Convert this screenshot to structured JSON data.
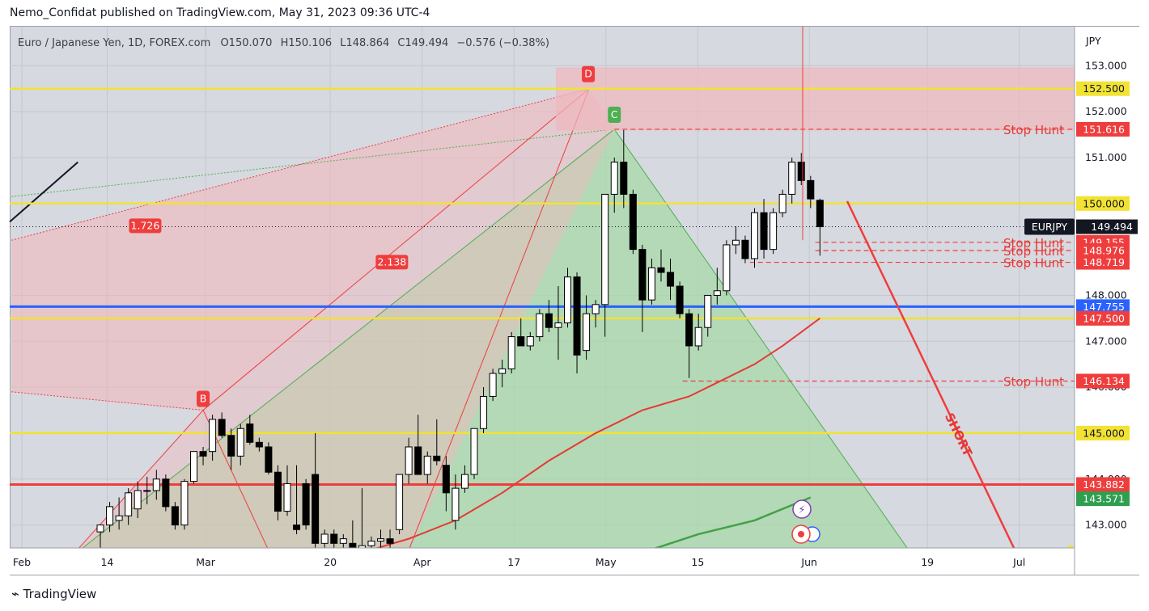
{
  "header": {
    "published": "Nemo_Confidat published on TradingView.com, May 31, 2023 09:36 UTC-4"
  },
  "footer": {
    "logo": "TradingView"
  },
  "chart_data": {
    "type": "candlestick",
    "currency": "JPY",
    "legend": {
      "symbol_desc": "Euro / Japanese Yen, 1D, FOREX.com",
      "o_label": "O",
      "o": "150.070",
      "h_label": "H",
      "h": "150.106",
      "l_label": "L",
      "l": "148.864",
      "c_label": "C",
      "c": "149.494",
      "change": "−0.576 (−0.38%)"
    },
    "y_range": [
      142.5,
      153.85
    ],
    "y_ticks": [
      "153.000",
      "152.000",
      "151.000",
      "150.000",
      "148.000",
      "147.000",
      "146.000",
      "145.000",
      "144.000",
      "143.000"
    ],
    "x_ticks": [
      {
        "label": "Feb",
        "date": "2023-02-01"
      },
      {
        "label": "14",
        "date": "2023-02-14"
      },
      {
        "label": "Mar",
        "date": "2023-03-01"
      },
      {
        "label": "20",
        "date": "2023-03-20"
      },
      {
        "label": "Apr",
        "date": "2023-04-03"
      },
      {
        "label": "17",
        "date": "2023-04-17"
      },
      {
        "label": "May",
        "date": "2023-05-01"
      },
      {
        "label": "15",
        "date": "2023-05-15"
      },
      {
        "label": "Jun",
        "date": "2023-06-01"
      },
      {
        "label": "19",
        "date": "2023-06-19"
      },
      {
        "label": "Jul",
        "date": "2023-07-03"
      }
    ],
    "candles": [
      {
        "o": 142.85,
        "h": 143.0,
        "l": 142.5,
        "c": 143.0
      },
      {
        "o": 143.0,
        "h": 143.5,
        "l": 142.85,
        "c": 143.4
      },
      {
        "o": 143.1,
        "h": 143.6,
        "l": 142.9,
        "c": 143.2
      },
      {
        "o": 143.2,
        "h": 143.8,
        "l": 143.0,
        "c": 143.7
      },
      {
        "o": 143.35,
        "h": 143.95,
        "l": 143.15,
        "c": 143.75
      },
      {
        "o": 143.75,
        "h": 144.05,
        "l": 143.45,
        "c": 143.75
      },
      {
        "o": 143.75,
        "h": 144.2,
        "l": 143.55,
        "c": 144.0
      },
      {
        "o": 144.0,
        "h": 144.1,
        "l": 143.3,
        "c": 143.4
      },
      {
        "o": 143.4,
        "h": 143.5,
        "l": 142.9,
        "c": 143.0
      },
      {
        "o": 143.0,
        "h": 144.0,
        "l": 142.9,
        "c": 143.95
      },
      {
        "o": 143.95,
        "h": 144.6,
        "l": 143.9,
        "c": 144.6
      },
      {
        "o": 144.6,
        "h": 144.7,
        "l": 144.3,
        "c": 144.5
      },
      {
        "o": 144.6,
        "h": 145.4,
        "l": 144.4,
        "c": 145.3
      },
      {
        "o": 145.3,
        "h": 145.45,
        "l": 144.9,
        "c": 144.95
      },
      {
        "o": 144.95,
        "h": 145.1,
        "l": 144.2,
        "c": 144.5
      },
      {
        "o": 144.5,
        "h": 145.2,
        "l": 144.3,
        "c": 145.1
      },
      {
        "o": 145.2,
        "h": 145.4,
        "l": 144.75,
        "c": 144.8
      },
      {
        "o": 144.8,
        "h": 144.9,
        "l": 144.6,
        "c": 144.7
      },
      {
        "o": 144.7,
        "h": 144.8,
        "l": 144.1,
        "c": 144.15
      },
      {
        "o": 144.15,
        "h": 144.3,
        "l": 143.1,
        "c": 143.3
      },
      {
        "o": 143.3,
        "h": 144.3,
        "l": 143.2,
        "c": 143.9
      },
      {
        "o": 143.0,
        "h": 144.3,
        "l": 142.8,
        "c": 142.9
      },
      {
        "o": 143.9,
        "h": 144.0,
        "l": 142.9,
        "c": 143.0
      },
      {
        "o": 144.1,
        "h": 145.0,
        "l": 142.5,
        "c": 142.6
      },
      {
        "o": 142.6,
        "h": 142.9,
        "l": 142.4,
        "c": 142.8
      },
      {
        "o": 142.8,
        "h": 142.9,
        "l": 142.5,
        "c": 142.6
      },
      {
        "o": 142.6,
        "h": 142.8,
        "l": 142.3,
        "c": 142.7
      },
      {
        "o": 142.6,
        "h": 143.1,
        "l": 142.3,
        "c": 142.5
      },
      {
        "o": 142.5,
        "h": 143.8,
        "l": 142.3,
        "c": 142.55
      },
      {
        "o": 142.55,
        "h": 142.75,
        "l": 142.3,
        "c": 142.65
      },
      {
        "o": 142.65,
        "h": 142.9,
        "l": 142.3,
        "c": 142.7
      },
      {
        "o": 142.7,
        "h": 142.9,
        "l": 142.4,
        "c": 142.6
      },
      {
        "o": 142.9,
        "h": 144.1,
        "l": 142.8,
        "c": 144.1
      },
      {
        "o": 144.1,
        "h": 144.9,
        "l": 143.9,
        "c": 144.7
      },
      {
        "o": 144.7,
        "h": 145.4,
        "l": 144.1,
        "c": 144.1
      },
      {
        "o": 144.1,
        "h": 144.6,
        "l": 143.9,
        "c": 144.5
      },
      {
        "o": 144.5,
        "h": 145.3,
        "l": 144.3,
        "c": 144.4
      },
      {
        "o": 144.3,
        "h": 144.5,
        "l": 143.3,
        "c": 143.7
      },
      {
        "o": 143.1,
        "h": 144.1,
        "l": 142.9,
        "c": 143.8
      },
      {
        "o": 143.8,
        "h": 144.3,
        "l": 143.7,
        "c": 144.1
      },
      {
        "o": 144.1,
        "h": 145.1,
        "l": 144.0,
        "c": 145.1
      },
      {
        "o": 145.1,
        "h": 146.0,
        "l": 145.0,
        "c": 145.8
      },
      {
        "o": 145.8,
        "h": 146.4,
        "l": 145.7,
        "c": 146.3
      },
      {
        "o": 146.3,
        "h": 146.6,
        "l": 146.0,
        "c": 146.4
      },
      {
        "o": 146.4,
        "h": 147.2,
        "l": 146.3,
        "c": 147.1
      },
      {
        "o": 147.1,
        "h": 147.5,
        "l": 146.9,
        "c": 146.9
      },
      {
        "o": 146.9,
        "h": 147.2,
        "l": 146.8,
        "c": 147.1
      },
      {
        "o": 147.1,
        "h": 147.7,
        "l": 147.0,
        "c": 147.6
      },
      {
        "o": 147.6,
        "h": 147.9,
        "l": 147.2,
        "c": 147.3
      },
      {
        "o": 147.3,
        "h": 148.2,
        "l": 146.6,
        "c": 147.4
      },
      {
        "o": 147.4,
        "h": 148.6,
        "l": 147.3,
        "c": 148.4
      },
      {
        "o": 148.4,
        "h": 148.5,
        "l": 146.3,
        "c": 146.7
      },
      {
        "o": 146.8,
        "h": 148.0,
        "l": 146.6,
        "c": 147.6
      },
      {
        "o": 147.6,
        "h": 147.9,
        "l": 147.3,
        "c": 147.8
      },
      {
        "o": 147.8,
        "h": 150.2,
        "l": 147.1,
        "c": 150.2
      },
      {
        "o": 150.2,
        "h": 151.0,
        "l": 149.8,
        "c": 150.9
      },
      {
        "o": 150.9,
        "h": 151.6,
        "l": 149.9,
        "c": 150.2
      },
      {
        "o": 150.2,
        "h": 150.3,
        "l": 148.9,
        "c": 149.0
      },
      {
        "o": 149.0,
        "h": 149.1,
        "l": 147.2,
        "c": 147.9
      },
      {
        "o": 147.9,
        "h": 148.8,
        "l": 147.8,
        "c": 148.6
      },
      {
        "o": 148.6,
        "h": 149.0,
        "l": 148.3,
        "c": 148.5
      },
      {
        "o": 148.5,
        "h": 148.8,
        "l": 147.9,
        "c": 148.2
      },
      {
        "o": 148.2,
        "h": 148.3,
        "l": 147.5,
        "c": 147.6
      },
      {
        "o": 147.6,
        "h": 147.7,
        "l": 146.2,
        "c": 146.9
      },
      {
        "o": 146.9,
        "h": 147.6,
        "l": 146.8,
        "c": 147.3
      },
      {
        "o": 147.3,
        "h": 147.9,
        "l": 147.1,
        "c": 148.0
      },
      {
        "o": 148.0,
        "h": 148.6,
        "l": 147.8,
        "c": 148.1
      },
      {
        "o": 148.1,
        "h": 149.2,
        "l": 148.0,
        "c": 149.1
      },
      {
        "o": 149.1,
        "h": 149.5,
        "l": 148.9,
        "c": 149.2
      },
      {
        "o": 149.2,
        "h": 149.3,
        "l": 148.7,
        "c": 148.8
      },
      {
        "o": 148.8,
        "h": 149.9,
        "l": 148.6,
        "c": 149.8
      },
      {
        "o": 149.8,
        "h": 150.1,
        "l": 148.8,
        "c": 149.0
      },
      {
        "o": 149.0,
        "h": 149.9,
        "l": 148.9,
        "c": 149.8
      },
      {
        "o": 149.8,
        "h": 150.3,
        "l": 149.7,
        "c": 150.2
      },
      {
        "o": 150.2,
        "h": 151.0,
        "l": 150.0,
        "c": 150.9
      },
      {
        "o": 150.9,
        "h": 151.1,
        "l": 150.4,
        "c": 150.5
      },
      {
        "o": 150.5,
        "h": 150.6,
        "l": 149.9,
        "c": 150.1
      },
      {
        "o": 150.07,
        "h": 150.106,
        "l": 148.864,
        "c": 149.494
      }
    ],
    "ma_red": [
      {
        "i": 23,
        "v": 142.3
      },
      {
        "i": 28,
        "v": 142.4
      },
      {
        "i": 33,
        "v": 142.7
      },
      {
        "i": 38,
        "v": 143.1
      },
      {
        "i": 43,
        "v": 143.7
      },
      {
        "i": 48,
        "v": 144.4
      },
      {
        "i": 53,
        "v": 145.0
      },
      {
        "i": 56,
        "v": 145.3
      },
      {
        "i": 58,
        "v": 145.5
      },
      {
        "i": 63,
        "v": 145.8
      },
      {
        "i": 66,
        "v": 146.1
      },
      {
        "i": 70,
        "v": 146.5
      },
      {
        "i": 73,
        "v": 146.9
      },
      {
        "i": 75,
        "v": 147.2
      },
      {
        "i": 77,
        "v": 147.5
      }
    ],
    "ma_green": [
      {
        "i": 58,
        "v": 142.4
      },
      {
        "i": 64,
        "v": 142.8
      },
      {
        "i": 70,
        "v": 143.1
      },
      {
        "i": 76,
        "v": 143.6
      }
    ],
    "horizontal_levels": [
      {
        "price": 152.5,
        "label": "152.500",
        "color": "#f2e233",
        "label_bg": "#f2e233",
        "label_fg": "#131722"
      },
      {
        "price": 150.0,
        "label": "150.000",
        "color": "#f2e233",
        "label_bg": "#f2e233",
        "label_fg": "#131722"
      },
      {
        "price": 147.755,
        "label": "147.755",
        "color": "#2962ff",
        "label_bg": "#2962ff",
        "label_fg": "#ffffff"
      },
      {
        "price": 147.5,
        "label": "147.500",
        "color": "#f2e233",
        "label_bg": "#ef3d3d",
        "label_fg": "#ffffff"
      },
      {
        "price": 145.0,
        "label": "145.000",
        "color": "#f2e233",
        "label_bg": "#f2e233",
        "label_fg": "#131722"
      },
      {
        "price": 143.882,
        "label": "143.882",
        "color": "#ef3d3d",
        "label_bg": "#ef3d3d",
        "label_fg": "#ffffff"
      }
    ],
    "stop_hunts": [
      {
        "price": 151.616,
        "label": "Stop Hunt",
        "axis_label": "151.616"
      },
      {
        "price": 149.155,
        "label": "Stop Hunt",
        "axis_label": "149.155"
      },
      {
        "price": 148.976,
        "label": "Stop Hunt",
        "axis_label": "148.976"
      },
      {
        "price": 148.719,
        "label": "Stop Hunt",
        "axis_label": "148.719"
      },
      {
        "price": 146.134,
        "label": "Stop Hunt",
        "axis_label": "146.134"
      }
    ],
    "price_tag": {
      "symbol": "EURJPY",
      "price": 149.494,
      "label": "149.494"
    },
    "ma_green_tag": {
      "price": 143.571,
      "label": "143.571",
      "color": "#2e9e4f"
    },
    "harmonic_points": [
      {
        "label": "B",
        "price": 145.5,
        "color": "#ef3d3d"
      },
      {
        "label": "C",
        "price": 151.616,
        "color": "#4caf50"
      },
      {
        "label": "D",
        "price": 152.5,
        "color": "#ef3d3d"
      }
    ],
    "ratios": [
      {
        "label": "1.726",
        "price": 149.55
      },
      {
        "label": "2.138",
        "price": 149.25
      }
    ],
    "short_label": "SHORT",
    "colors": {
      "bg": "#d6d9e0",
      "grid": "#c4c7cf",
      "bull": "#ffffff",
      "bear": "#000000",
      "green_fill": "#a8d8a8",
      "red_fill": "#f0b8bc"
    }
  }
}
